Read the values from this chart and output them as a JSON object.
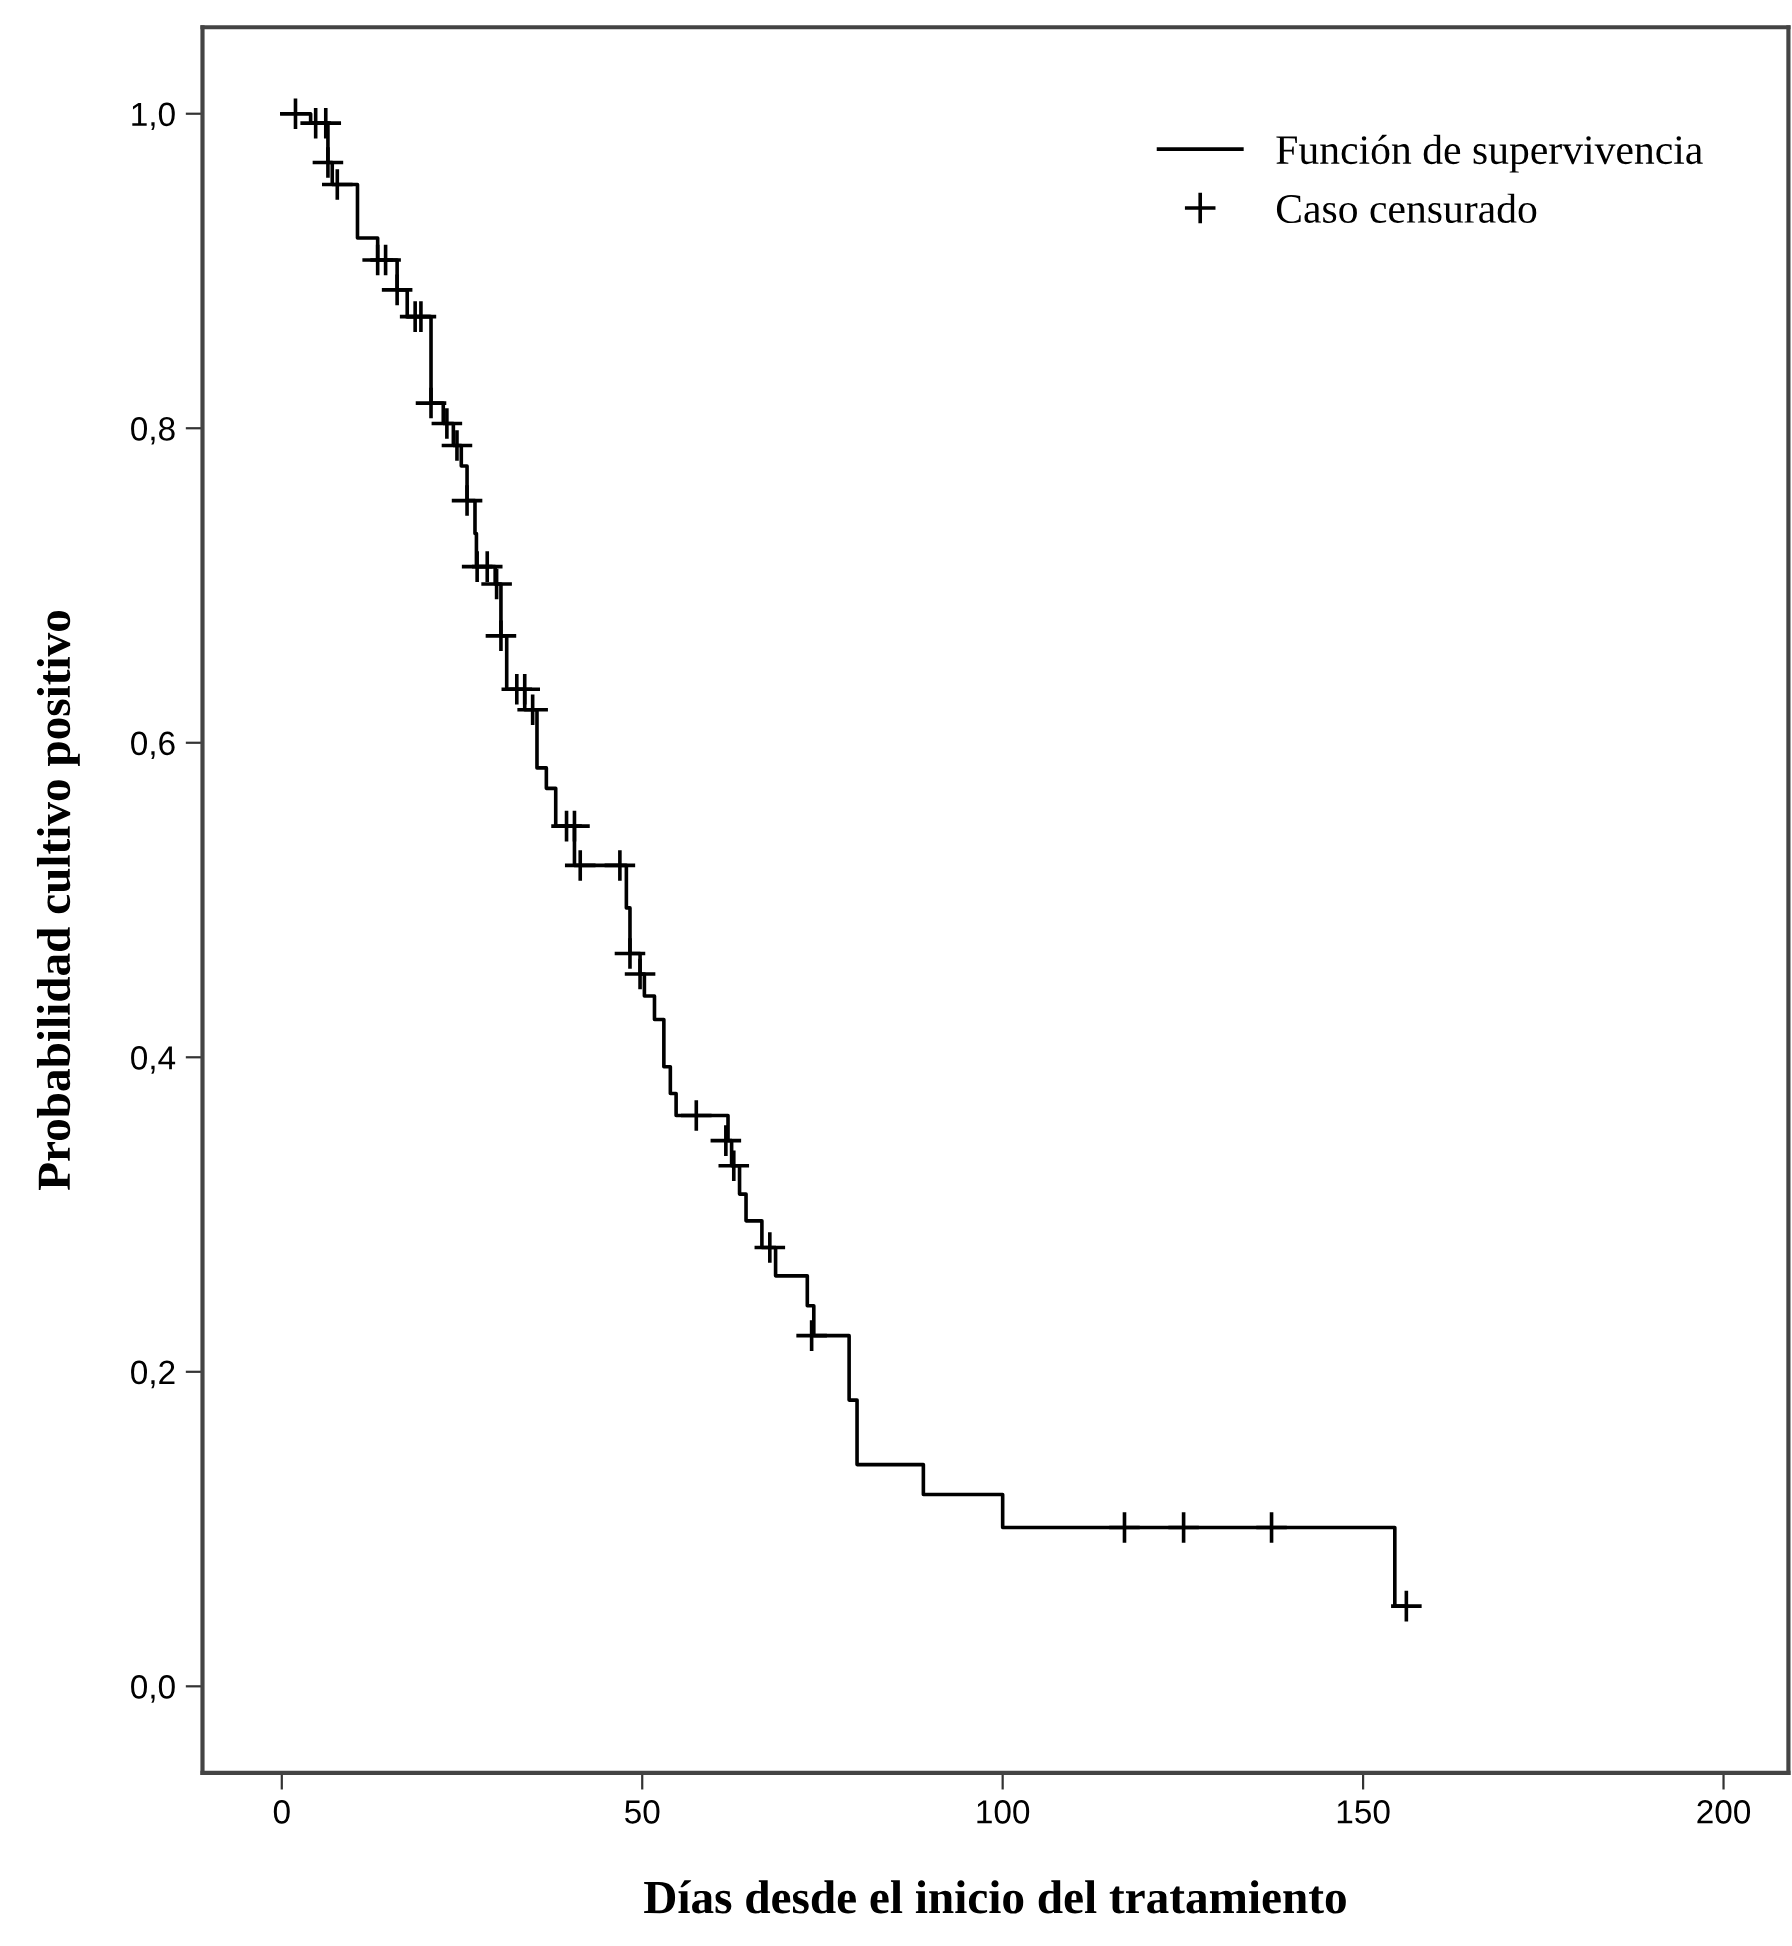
{
  "chart_data": {
    "type": "step",
    "xlabel": "Días desde el inicio del tratamiento",
    "ylabel": "Probabilidad cultivo positivo",
    "xlim": [
      -11,
      209
    ],
    "xticks": [
      0,
      50,
      100,
      150,
      200
    ],
    "ylim": [
      -0.055,
      1.055
    ],
    "yticks": [
      {
        "value": 0,
        "label": "0,0"
      },
      {
        "value": 0.2,
        "label": "0,2"
      },
      {
        "value": 0.4,
        "label": "0,4"
      },
      {
        "value": 0.6,
        "label": "0,6"
      },
      {
        "value": 0.8,
        "label": "0,8"
      },
      {
        "value": 1.0,
        "label": "1,0"
      }
    ],
    "legend": "top right",
    "grid": false,
    "series": [
      {
        "name": "Función de supervivencia",
        "color": "#000000",
        "marker": "none",
        "line_style": "solid",
        "x": [
          0,
          4,
          6.4,
          7,
          10.5,
          13.3,
          16,
          17.4,
          20.7,
          22.4,
          23.8,
          24.9,
          25.7,
          26.8,
          27,
          29.6,
          30.4,
          31.2,
          33.7,
          35.4,
          36.7,
          38,
          40.6,
          47.8,
          48.3,
          49.7,
          50.3,
          51.7,
          53,
          53.9,
          54.7,
          61.9,
          62.4,
          63.5,
          64.4,
          66.6,
          68.5,
          72.9,
          73.8,
          78.7,
          79.8,
          89,
          100,
          154.4,
          156
        ],
        "values": [
          1.0,
          0.994,
          0.969,
          0.955,
          0.921,
          0.907,
          0.888,
          0.871,
          0.816,
          0.803,
          0.789,
          0.776,
          0.754,
          0.733,
          0.712,
          0.701,
          0.668,
          0.634,
          0.621,
          0.584,
          0.571,
          0.547,
          0.522,
          0.495,
          0.466,
          0.453,
          0.439,
          0.424,
          0.394,
          0.377,
          0.363,
          0.347,
          0.331,
          0.313,
          0.296,
          0.279,
          0.261,
          0.242,
          0.223,
          0.182,
          0.141,
          0.122,
          0.101,
          0.051,
          0.051
        ]
      },
      {
        "name": "Caso censurado",
        "type": "scatter",
        "color": "#000000",
        "marker": "cross",
        "x": [
          1.9,
          4.7,
          6.1,
          6.4,
          7.7,
          13.3,
          14.4,
          16,
          18.5,
          19.3,
          20.7,
          22.9,
          24.3,
          25.7,
          27.1,
          28.5,
          29.8,
          30.4,
          32.6,
          33.7,
          34.8,
          39.5,
          40.6,
          41.4,
          46.9,
          48.3,
          49.7,
          57.5,
          61.6,
          62.7,
          67.7,
          73.5,
          116.9,
          125.1,
          137.3,
          156
        ],
        "values": [
          1.0,
          0.994,
          0.994,
          0.969,
          0.955,
          0.907,
          0.907,
          0.888,
          0.871,
          0.871,
          0.816,
          0.803,
          0.789,
          0.754,
          0.712,
          0.712,
          0.701,
          0.668,
          0.634,
          0.634,
          0.621,
          0.547,
          0.547,
          0.522,
          0.522,
          0.466,
          0.453,
          0.363,
          0.347,
          0.331,
          0.279,
          0.223,
          0.101,
          0.101,
          0.101,
          0.051
        ]
      }
    ]
  }
}
